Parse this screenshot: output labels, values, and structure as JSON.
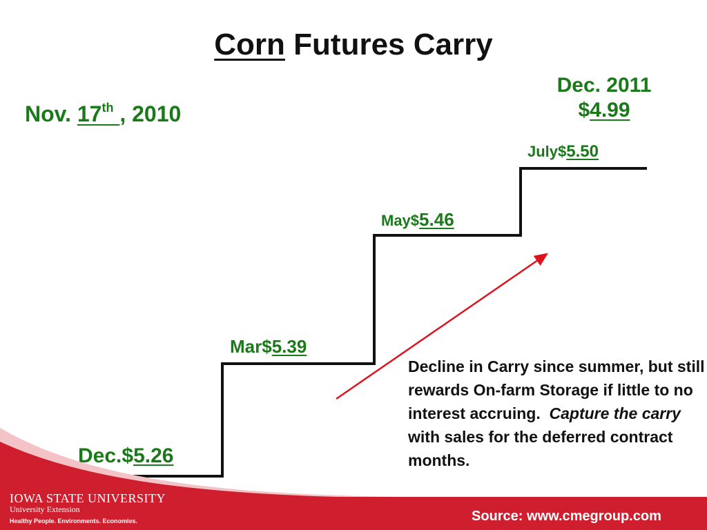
{
  "title": {
    "part1": "Corn",
    "part2": " Futures Carry"
  },
  "date": {
    "prefix": "Nov. ",
    "day": "17",
    "suffix": "th",
    "pad": " ",
    "year": ", 2010"
  },
  "deferred": {
    "line1": "Dec. 2011",
    "currency": "$",
    "price": "4.99"
  },
  "steps": [
    {
      "month": "Dec.$",
      "price": "5.26"
    },
    {
      "month": "Mar$",
      "price": "5.39"
    },
    {
      "month": "May$",
      "price": "5.46"
    },
    {
      "month": "July$",
      "price": "5.50"
    }
  ],
  "note": {
    "text1": "Decline in Carry since summer, but still rewards On-farm Storage if little to no interest accruing.  ",
    "emphasis": "Capture the carry",
    "text2": " with sales for the deferred contract months."
  },
  "footer": {
    "university": "Iowa State University",
    "unit": "University Extension",
    "tagline": "Healthy People. Environments. Economies.",
    "source": "Source:  www.cmegroup.com"
  },
  "colors": {
    "accent_green": "#1a7a1a",
    "arrow_red": "#e0101c",
    "footer_red": "#cf1f2e"
  }
}
